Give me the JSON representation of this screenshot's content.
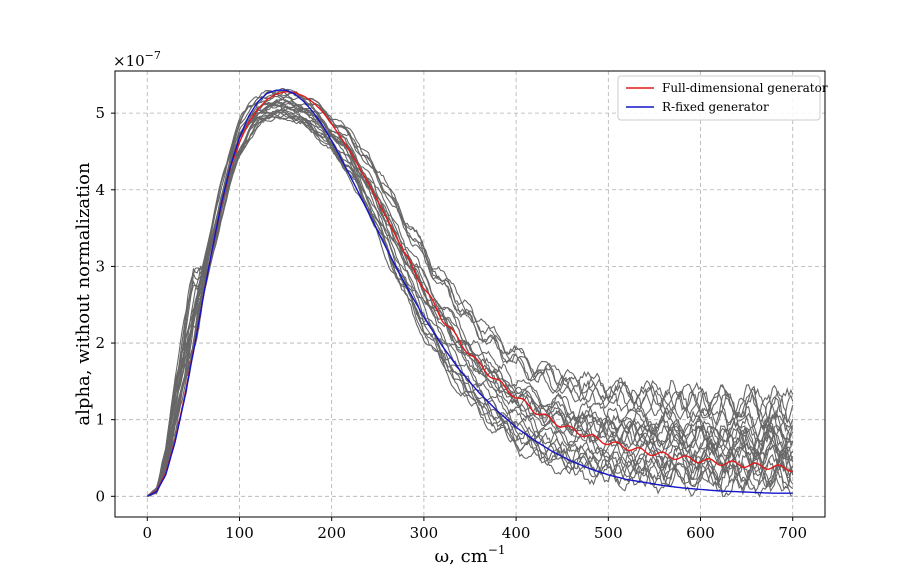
{
  "chart_data": {
    "type": "line",
    "xlabel": "ω, cm",
    "xlabel_exponent": "−1",
    "ylabel": "alpha, without normalization",
    "y_scale_prefix": "×10",
    "y_scale_exponent": "−7",
    "xlim": [
      -35,
      735
    ],
    "ylim": [
      -0.27,
      5.55
    ],
    "x_ticks": [
      0,
      100,
      200,
      300,
      400,
      500,
      600,
      700
    ],
    "y_ticks": [
      0,
      1,
      2,
      3,
      4,
      5
    ],
    "grid": true,
    "legend_position": "top-right",
    "series": [
      {
        "name": "Full-dimensional generator",
        "color": "#e41a1c",
        "x": [
          0,
          10,
          20,
          30,
          40,
          50,
          60,
          70,
          80,
          90,
          100,
          110,
          120,
          130,
          140,
          150,
          160,
          170,
          180,
          190,
          200,
          220,
          240,
          260,
          280,
          300,
          320,
          340,
          360,
          380,
          400,
          420,
          440,
          460,
          480,
          500,
          520,
          540,
          560,
          580,
          600,
          620,
          640,
          660,
          680,
          700
        ],
        "y": [
          0.0,
          0.07,
          0.3,
          0.72,
          1.28,
          1.9,
          2.55,
          3.2,
          3.78,
          4.28,
          4.62,
          4.88,
          5.05,
          5.18,
          5.25,
          5.28,
          5.27,
          5.22,
          5.14,
          5.02,
          4.86,
          4.5,
          4.08,
          3.62,
          3.15,
          2.72,
          2.32,
          2.0,
          1.72,
          1.5,
          1.3,
          1.12,
          0.98,
          0.87,
          0.78,
          0.7,
          0.64,
          0.58,
          0.54,
          0.5,
          0.47,
          0.44,
          0.42,
          0.4,
          0.38,
          0.36
        ]
      },
      {
        "name": "R-fixed generator",
        "color": "#1515c8",
        "x": [
          0,
          10,
          20,
          30,
          40,
          50,
          60,
          70,
          80,
          90,
          100,
          110,
          120,
          130,
          140,
          150,
          160,
          170,
          180,
          190,
          200,
          220,
          240,
          260,
          280,
          300,
          320,
          340,
          360,
          380,
          400,
          420,
          440,
          460,
          480,
          500,
          520,
          540,
          560,
          580,
          600,
          620,
          640,
          660,
          680,
          700
        ],
        "y": [
          0.0,
          0.06,
          0.28,
          0.7,
          1.25,
          1.88,
          2.55,
          3.2,
          3.8,
          4.3,
          4.68,
          4.96,
          5.15,
          5.26,
          5.3,
          5.3,
          5.25,
          5.15,
          5.01,
          4.84,
          4.64,
          4.18,
          3.7,
          3.22,
          2.76,
          2.34,
          1.96,
          1.63,
          1.35,
          1.11,
          0.9,
          0.73,
          0.58,
          0.46,
          0.36,
          0.28,
          0.22,
          0.18,
          0.14,
          0.11,
          0.09,
          0.07,
          0.06,
          0.05,
          0.04,
          0.04
        ]
      }
    ],
    "sample_band": {
      "color": "#666666",
      "count": 24,
      "x": [
        0,
        10,
        20,
        30,
        40,
        50,
        60,
        70,
        80,
        90,
        100,
        110,
        120,
        130,
        140,
        150,
        160,
        170,
        180,
        190,
        200,
        220,
        240,
        260,
        280,
        300,
        320,
        340,
        360,
        380,
        400,
        420,
        440,
        460,
        480,
        500,
        520,
        540,
        560,
        580,
        600,
        620,
        640,
        660,
        680,
        700
      ],
      "low": [
        0.0,
        0.06,
        0.3,
        0.7,
        1.25,
        1.85,
        2.45,
        3.05,
        3.55,
        4.0,
        4.35,
        4.6,
        4.8,
        4.85,
        4.9,
        4.9,
        4.85,
        4.78,
        4.7,
        4.58,
        4.45,
        4.1,
        3.6,
        3.0,
        2.45,
        1.95,
        1.55,
        1.2,
        0.92,
        0.7,
        0.5,
        0.36,
        0.26,
        0.19,
        0.14,
        0.11,
        0.09,
        0.08,
        0.07,
        0.06,
        0.06,
        0.05,
        0.05,
        0.05,
        0.05,
        0.05
      ],
      "high": [
        0.0,
        0.1,
        0.6,
        1.6,
        2.3,
        2.95,
        3.1,
        3.55,
        4.15,
        4.6,
        4.95,
        5.15,
        5.25,
        5.3,
        5.32,
        5.32,
        5.3,
        5.28,
        5.2,
        5.1,
        5.0,
        4.8,
        4.5,
        4.15,
        3.75,
        3.35,
        3.0,
        2.7,
        2.4,
        2.2,
        2.0,
        1.85,
        1.75,
        1.65,
        1.6,
        1.55,
        1.5,
        1.47,
        1.45,
        1.42,
        1.4,
        1.38,
        1.36,
        1.34,
        1.32,
        1.3
      ]
    }
  }
}
